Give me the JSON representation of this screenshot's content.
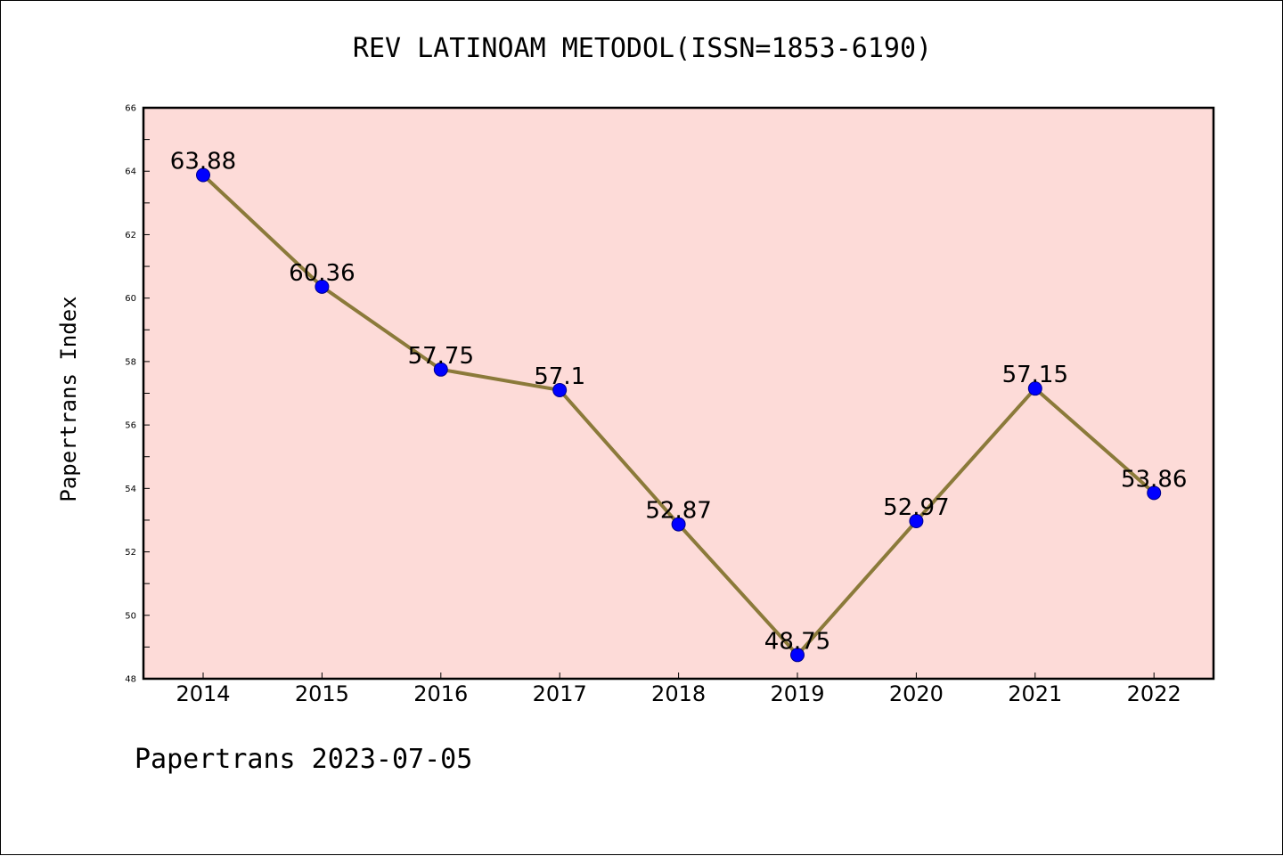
{
  "title": "REV LATINOAM METODOL(ISSN=1853-6190)",
  "footer": "Papertrans 2023-07-05",
  "chart_data": {
    "type": "line",
    "title": "REV LATINOAM METODOL(ISSN=1853-6190)",
    "xlabel": "",
    "ylabel": "Papertrans Index",
    "categories": [
      "2014",
      "2015",
      "2016",
      "2017",
      "2018",
      "2019",
      "2020",
      "2021",
      "2022"
    ],
    "series": [
      {
        "values": [
          63.88,
          60.36,
          57.75,
          57.1,
          52.87,
          48.75,
          52.97,
          57.15,
          53.86
        ],
        "data_labels": [
          "63.88",
          "60.36",
          "57.75",
          "57.1",
          "52.87",
          "48.75",
          "52.97",
          "57.15",
          "53.86"
        ],
        "line_color": "#8b7a3a",
        "marker_color": "#0000ff"
      }
    ],
    "ylim": [
      48,
      66
    ],
    "yticks": [
      "48",
      "50",
      "52",
      "54",
      "56",
      "58",
      "60",
      "62",
      "64",
      "66"
    ],
    "plot_background": "#fddbd8",
    "grid": false,
    "legend": "none"
  }
}
